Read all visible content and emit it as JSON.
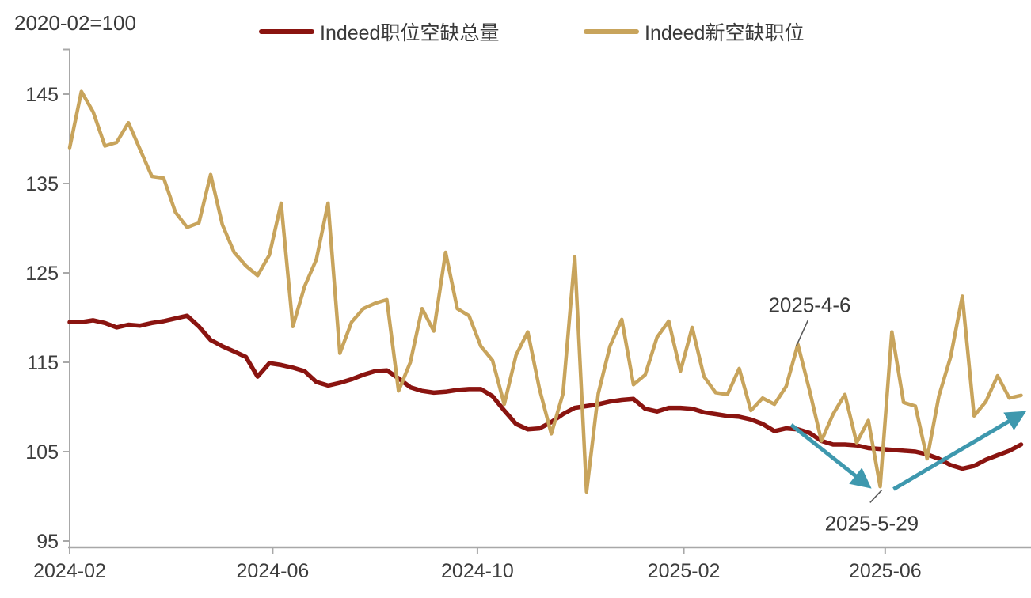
{
  "header": {
    "index_note": "2020-02=100"
  },
  "legend": [
    {
      "label": "Indeed职位空缺总量",
      "color": "#8a1410"
    },
    {
      "label": "Indeed新空缺职位",
      "color": "#c8a45c"
    }
  ],
  "colors": {
    "series_total": "#8a1410",
    "series_new": "#c8a45c",
    "arrow": "#3e98ae",
    "axis": "#a8a8a8",
    "tick_text": "#3d3d3d",
    "annotation_text": "#3a3a3a",
    "leader_line": "#5a5a5a"
  },
  "chart_data": {
    "type": "line",
    "title": "",
    "index_note": "2020-02=100",
    "xlabel": "",
    "ylabel": "",
    "grid": false,
    "legend_position": "top-center",
    "ylim": [
      94,
      150
    ],
    "y_ticks": [
      95,
      105,
      115,
      125,
      135,
      145
    ],
    "y_ticks_unlabeled": [
      150
    ],
    "x_ticks": [
      {
        "label": "2024-02",
        "date": "2024-02-01"
      },
      {
        "label": "2024-06",
        "date": "2024-06-01"
      },
      {
        "label": "2024-10",
        "date": "2024-10-01"
      },
      {
        "label": "2025-02",
        "date": "2025-02-01"
      },
      {
        "label": "2025-06",
        "date": "2025-06-01"
      }
    ],
    "x": [
      "2024-02-01",
      "2024-02-08",
      "2024-02-15",
      "2024-02-22",
      "2024-02-29",
      "2024-03-07",
      "2024-03-14",
      "2024-03-21",
      "2024-03-28",
      "2024-04-04",
      "2024-04-11",
      "2024-04-18",
      "2024-04-25",
      "2024-05-02",
      "2024-05-09",
      "2024-05-16",
      "2024-05-23",
      "2024-05-30",
      "2024-06-06",
      "2024-06-13",
      "2024-06-20",
      "2024-06-27",
      "2024-07-04",
      "2024-07-11",
      "2024-07-18",
      "2024-07-25",
      "2024-08-01",
      "2024-08-08",
      "2024-08-15",
      "2024-08-22",
      "2024-08-29",
      "2024-09-05",
      "2024-09-12",
      "2024-09-19",
      "2024-09-26",
      "2024-10-03",
      "2024-10-10",
      "2024-10-17",
      "2024-10-24",
      "2024-10-31",
      "2024-11-07",
      "2024-11-14",
      "2024-11-21",
      "2024-11-28",
      "2024-12-05",
      "2024-12-12",
      "2024-12-19",
      "2024-12-26",
      "2025-01-02",
      "2025-01-09",
      "2025-01-16",
      "2025-01-23",
      "2025-01-30",
      "2025-02-06",
      "2025-02-13",
      "2025-02-20",
      "2025-02-27",
      "2025-03-06",
      "2025-03-13",
      "2025-03-20",
      "2025-03-27",
      "2025-04-03",
      "2025-04-10",
      "2025-04-17",
      "2025-04-24",
      "2025-05-01",
      "2025-05-08",
      "2025-05-15",
      "2025-05-22",
      "2025-05-29",
      "2025-06-05",
      "2025-06-12",
      "2025-06-19",
      "2025-06-26",
      "2025-07-03",
      "2025-07-10",
      "2025-07-17",
      "2025-07-24",
      "2025-07-31",
      "2025-08-07",
      "2025-08-14",
      "2025-08-21"
    ],
    "series": [
      {
        "name": "Indeed职位空缺总量",
        "color": "#8a1410",
        "width": 5.5,
        "values": [
          119.5,
          119.5,
          119.7,
          119.4,
          118.9,
          119.2,
          119.1,
          119.4,
          119.6,
          119.9,
          120.2,
          119.0,
          117.5,
          116.8,
          116.2,
          115.6,
          113.4,
          114.9,
          114.7,
          114.4,
          114.0,
          112.8,
          112.4,
          112.7,
          113.1,
          113.6,
          114.0,
          114.1,
          113.2,
          112.2,
          111.8,
          111.6,
          111.7,
          111.9,
          112.0,
          112.0,
          111.2,
          109.6,
          108.1,
          107.5,
          107.6,
          108.3,
          109.2,
          109.9,
          110.1,
          110.3,
          110.6,
          110.8,
          110.9,
          109.8,
          109.5,
          109.9,
          109.9,
          109.8,
          109.4,
          109.2,
          109.0,
          108.9,
          108.6,
          108.1,
          107.3,
          107.6,
          107.5,
          107.1,
          106.2,
          105.8,
          105.8,
          105.7,
          105.4,
          105.3,
          105.2,
          105.1,
          105.0,
          104.7,
          104.2,
          103.5,
          103.1,
          103.4,
          104.1,
          104.6,
          105.1,
          105.8
        ]
      },
      {
        "name": "Indeed新空缺职位",
        "color": "#c8a45c",
        "width": 4.5,
        "values": [
          139.0,
          145.3,
          143.0,
          139.2,
          139.6,
          141.8,
          138.8,
          135.8,
          135.6,
          131.8,
          130.1,
          130.6,
          136.0,
          130.4,
          127.3,
          125.8,
          124.7,
          127.0,
          132.8,
          119.0,
          123.5,
          126.5,
          132.8,
          116.0,
          119.5,
          121.0,
          121.6,
          122.0,
          111.8,
          115.0,
          121.0,
          118.5,
          127.3,
          121.0,
          120.2,
          116.8,
          115.2,
          110.3,
          115.8,
          118.4,
          112.0,
          107.0,
          111.5,
          126.8,
          100.5,
          111.5,
          116.8,
          119.8,
          112.5,
          113.6,
          117.8,
          119.6,
          114.0,
          118.9,
          113.4,
          111.6,
          111.4,
          114.3,
          109.6,
          111.0,
          110.3,
          112.3,
          117.0,
          111.8,
          106.2,
          109.2,
          111.4,
          106.0,
          108.5,
          101.1,
          118.4,
          110.5,
          110.1,
          104.2,
          111.2,
          115.6,
          122.4,
          109.0,
          110.6,
          113.5,
          111.0,
          111.3
        ]
      }
    ],
    "annotations": [
      {
        "text": "2025-4-6",
        "text_at": {
          "date": "2025-04-17",
          "value": 120.6
        },
        "leader": {
          "from": {
            "date": "2025-04-09",
            "value": 116.8
          },
          "to": {
            "date": "2025-04-16",
            "value": 119.7
          }
        }
      },
      {
        "text": "2025-5-29",
        "text_at": {
          "date": "2025-05-24",
          "value": 96.2
        },
        "leader": {
          "from": {
            "date": "2025-05-30",
            "value": 100.7
          },
          "to": {
            "date": "2025-05-23",
            "value": 99.3
          }
        }
      }
    ],
    "arrows": [
      {
        "from": {
          "date": "2025-04-06",
          "value": 108.0
        },
        "to": {
          "date": "2025-05-21",
          "value": 101.3
        }
      },
      {
        "from": {
          "date": "2025-06-06",
          "value": 100.8
        },
        "to": {
          "date": "2025-08-21",
          "value": 109.2
        }
      }
    ]
  }
}
